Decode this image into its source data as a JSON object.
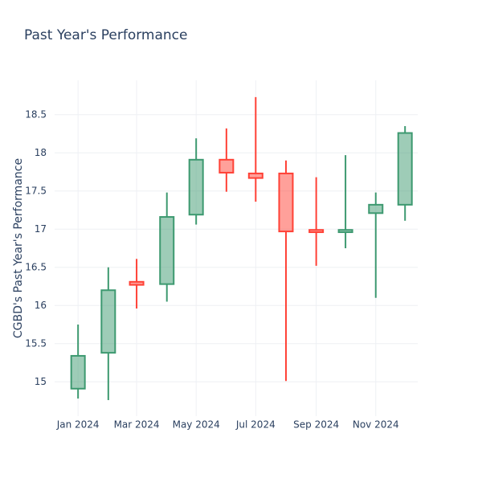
{
  "chart_data": {
    "type": "candlestick",
    "title": "Past Year's Performance",
    "y_label": "CGBD's Past Year's Performance",
    "x": [
      "2024-01",
      "2024-02",
      "2024-03",
      "2024-04",
      "2024-05",
      "2024-06",
      "2024-07",
      "2024-08",
      "2024-09",
      "2024-10",
      "2024-11",
      "2024-12"
    ],
    "open": [
      14.91,
      15.38,
      16.31,
      16.28,
      17.19,
      17.91,
      17.73,
      17.73,
      16.99,
      16.96,
      17.21,
      17.32
    ],
    "high": [
      15.75,
      16.5,
      16.61,
      17.48,
      18.19,
      18.32,
      18.73,
      17.9,
      17.68,
      17.97,
      17.48,
      18.35
    ],
    "low": [
      14.78,
      14.76,
      15.96,
      16.05,
      17.06,
      17.49,
      17.36,
      15.01,
      16.52,
      16.75,
      16.1,
      17.11
    ],
    "close": [
      15.34,
      16.2,
      16.27,
      17.16,
      17.91,
      17.74,
      17.67,
      16.97,
      16.96,
      16.99,
      17.32,
      18.26
    ],
    "increasing_color": "#3d9970",
    "decreasing_color": "#ff4136",
    "xlim": [
      "2023-12-08",
      "2024-12-14"
    ],
    "xticks": [
      {
        "value": "2024-01",
        "label": "Jan 2024"
      },
      {
        "value": "2024-03",
        "label": "Mar 2024"
      },
      {
        "value": "2024-05",
        "label": "May 2024"
      },
      {
        "value": "2024-07",
        "label": "Jul 2024"
      },
      {
        "value": "2024-09",
        "label": "Sep 2024"
      },
      {
        "value": "2024-11",
        "label": "Nov 2024"
      }
    ],
    "ylim": [
      14.55,
      18.95
    ],
    "yticks": [
      15,
      15.5,
      16,
      16.5,
      17,
      17.5,
      18,
      18.5
    ],
    "grid": true
  }
}
